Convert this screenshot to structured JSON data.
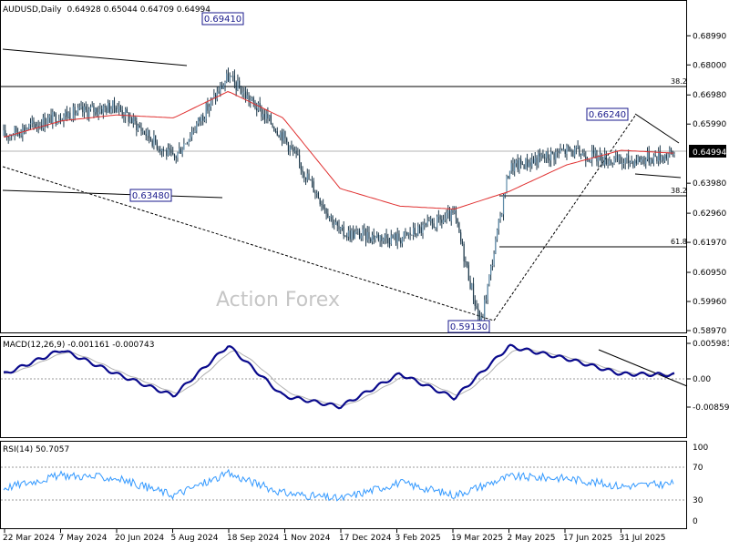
{
  "chart_data": [
    {
      "type": "candlestick",
      "symbol_header": "AUDUSD,Daily",
      "ohlc_header": "0.64928 0.65044 0.64709 0.64994",
      "ylim": [
        0.5897,
        0.6999
      ],
      "y_ticks": [
        "0.68990",
        "0.68000",
        "0.66980",
        "0.65990",
        "0.64994",
        "0.63980",
        "0.62960",
        "0.61970",
        "0.60950",
        "0.59960",
        "0.58970"
      ],
      "x_ticks": [
        "22 Mar 2024",
        "7 May 2024",
        "20 Jun 2024",
        "5 Aug 2024",
        "18 Sep 2024",
        "1 Nov 2024",
        "17 Dec 2024",
        "3 Feb 2025",
        "19 Mar 2025",
        "2 May 2025",
        "17 Jun 2025",
        "31 Jul 2025"
      ],
      "current_price": "0.64994",
      "price_series_approx": [
        [
          "22 Mar 2024",
          0.656
        ],
        [
          "7 May 2024",
          0.663
        ],
        [
          "20 Jun 2024",
          0.666
        ],
        [
          "5 Aug 2024",
          0.648
        ],
        [
          "18 Sep 2024",
          0.676
        ],
        [
          "1 Nov 2024",
          0.656
        ],
        [
          "17 Dec 2024",
          0.623
        ],
        [
          "3 Feb 2025",
          0.621
        ],
        [
          "19 Mar 2025",
          0.629
        ],
        [
          "9 Apr 2025",
          0.5913
        ],
        [
          "2 May 2025",
          0.645
        ],
        [
          "17 Jun 2025",
          0.651
        ],
        [
          "31 Jul 2025",
          0.647
        ],
        [
          "latest",
          0.6499
        ]
      ],
      "moving_average_approx": [
        [
          "22 Mar 2024",
          0.6555
        ],
        [
          "7 May 2024",
          0.661
        ],
        [
          "20 Jun 2024",
          0.663
        ],
        [
          "5 Aug 2024",
          0.662
        ],
        [
          "18 Sep 2024",
          0.671
        ],
        [
          "1 Nov 2024",
          0.662
        ],
        [
          "17 Dec 2024",
          0.638
        ],
        [
          "3 Feb 2025",
          0.632
        ],
        [
          "19 Mar 2025",
          0.631
        ],
        [
          "2 May 2025",
          0.637
        ],
        [
          "17 Jun 2025",
          0.646
        ],
        [
          "31 Jul 2025",
          0.651
        ],
        [
          "latest",
          0.65
        ]
      ],
      "price_labels": [
        "0.69410",
        "0.66240",
        "0.63480",
        "0.59130"
      ],
      "fib_labels": [
        "38.2",
        "38.2",
        "61.8"
      ],
      "watermark": "Action Forex"
    },
    {
      "type": "line",
      "header": "MACD(12,26,9) -0.001161 -0.000743",
      "ylim": [
        -0.00859,
        0.005981
      ],
      "y_ticks": [
        "0.005981",
        "0.00",
        "-0.00859"
      ],
      "macd_approx": [
        [
          "22 Mar 2024",
          -0.001
        ],
        [
          "7 May 2024",
          0.0045
        ],
        [
          "20 Jun 2024",
          -0.001
        ],
        [
          "5 Aug 2024",
          -0.006
        ],
        [
          "18 Sep 2024",
          0.0055
        ],
        [
          "1 Nov 2024",
          -0.006
        ],
        [
          "17 Dec 2024",
          -0.0085
        ],
        [
          "3 Feb 2025",
          -0.001
        ],
        [
          "19 Mar 2025",
          -0.0065
        ],
        [
          "2 May 2025",
          0.0053
        ],
        [
          "17 Jun 2025",
          0.0025
        ],
        [
          "31 Jul 2025",
          -0.001
        ],
        [
          "latest",
          -0.0012
        ]
      ]
    },
    {
      "type": "line",
      "header": "RSI(14) 50.7057",
      "ylim": [
        0,
        100
      ],
      "y_ticks": [
        "100",
        "70",
        "30",
        "0"
      ],
      "rsi_approx": [
        [
          "22 Mar 2024",
          45
        ],
        [
          "7 May 2024",
          62
        ],
        [
          "20 Jun 2024",
          58
        ],
        [
          "5 Aug 2024",
          35
        ],
        [
          "18 Sep 2024",
          64
        ],
        [
          "1 Nov 2024",
          38
        ],
        [
          "17 Dec 2024",
          30
        ],
        [
          "3 Feb 2025",
          52
        ],
        [
          "19 Mar 2025",
          35
        ],
        [
          "2 May 2025",
          60
        ],
        [
          "17 Jun 2025",
          58
        ],
        [
          "31 Jul 2025",
          47
        ],
        [
          "latest",
          50.7
        ]
      ]
    }
  ]
}
